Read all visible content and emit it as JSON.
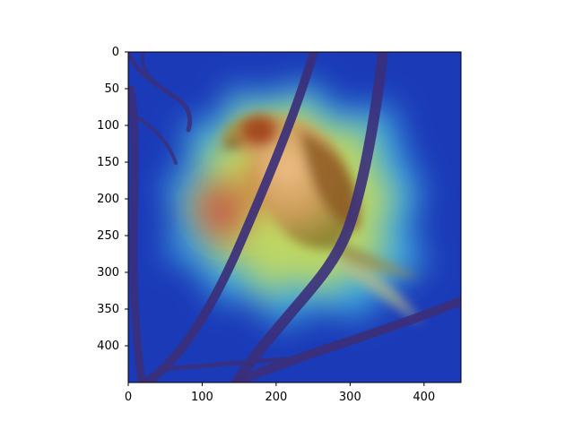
{
  "figure": {
    "kind": "saliency heatmap overlay on photograph",
    "subject": "bird perched on branches",
    "colormap": "jet",
    "heat_peak_region": "bird body"
  },
  "axes": {
    "x_ticks": [
      "0",
      "100",
      "200",
      "300",
      "400"
    ],
    "y_ticks": [
      "0",
      "50",
      "100",
      "150",
      "200",
      "250",
      "300",
      "350",
      "400"
    ],
    "x_range": [
      0,
      450
    ],
    "y_range": [
      450,
      0
    ]
  },
  "colors": {
    "background_blue": "#1f3fc6",
    "heat_red": "#d3343c",
    "heat_yellow": "#d9e24a",
    "heat_cyan": "#42b8e8",
    "branch": "#3b2f7a",
    "bird_head": "#a9471f"
  }
}
